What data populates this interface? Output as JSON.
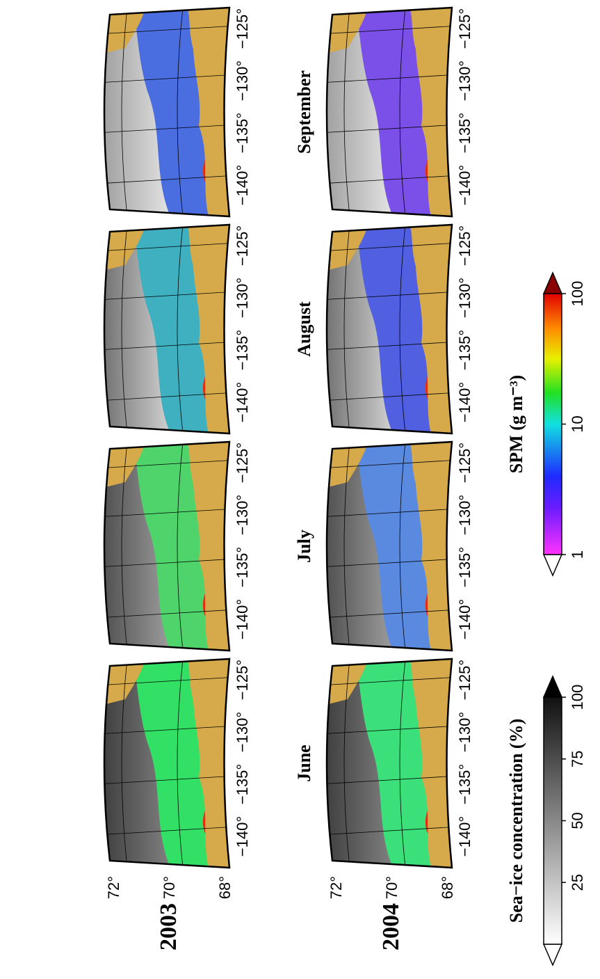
{
  "years": [
    "2003",
    "2004"
  ],
  "months": [
    "June",
    "July",
    "August",
    "September"
  ],
  "latitude_labels": [
    "72°",
    "70°",
    "68°"
  ],
  "longitude_labels": [
    "−140°",
    "−135°",
    "−130°",
    "−125°"
  ],
  "spm_colorbar": {
    "title": "SPM (g m⁻³)",
    "ticks": [
      "1",
      "10",
      "100"
    ]
  },
  "sea_ice_colorbar": {
    "title": "Sea−ice concentration (%)",
    "ticks": [
      "25",
      "50",
      "75",
      "100"
    ]
  }
}
